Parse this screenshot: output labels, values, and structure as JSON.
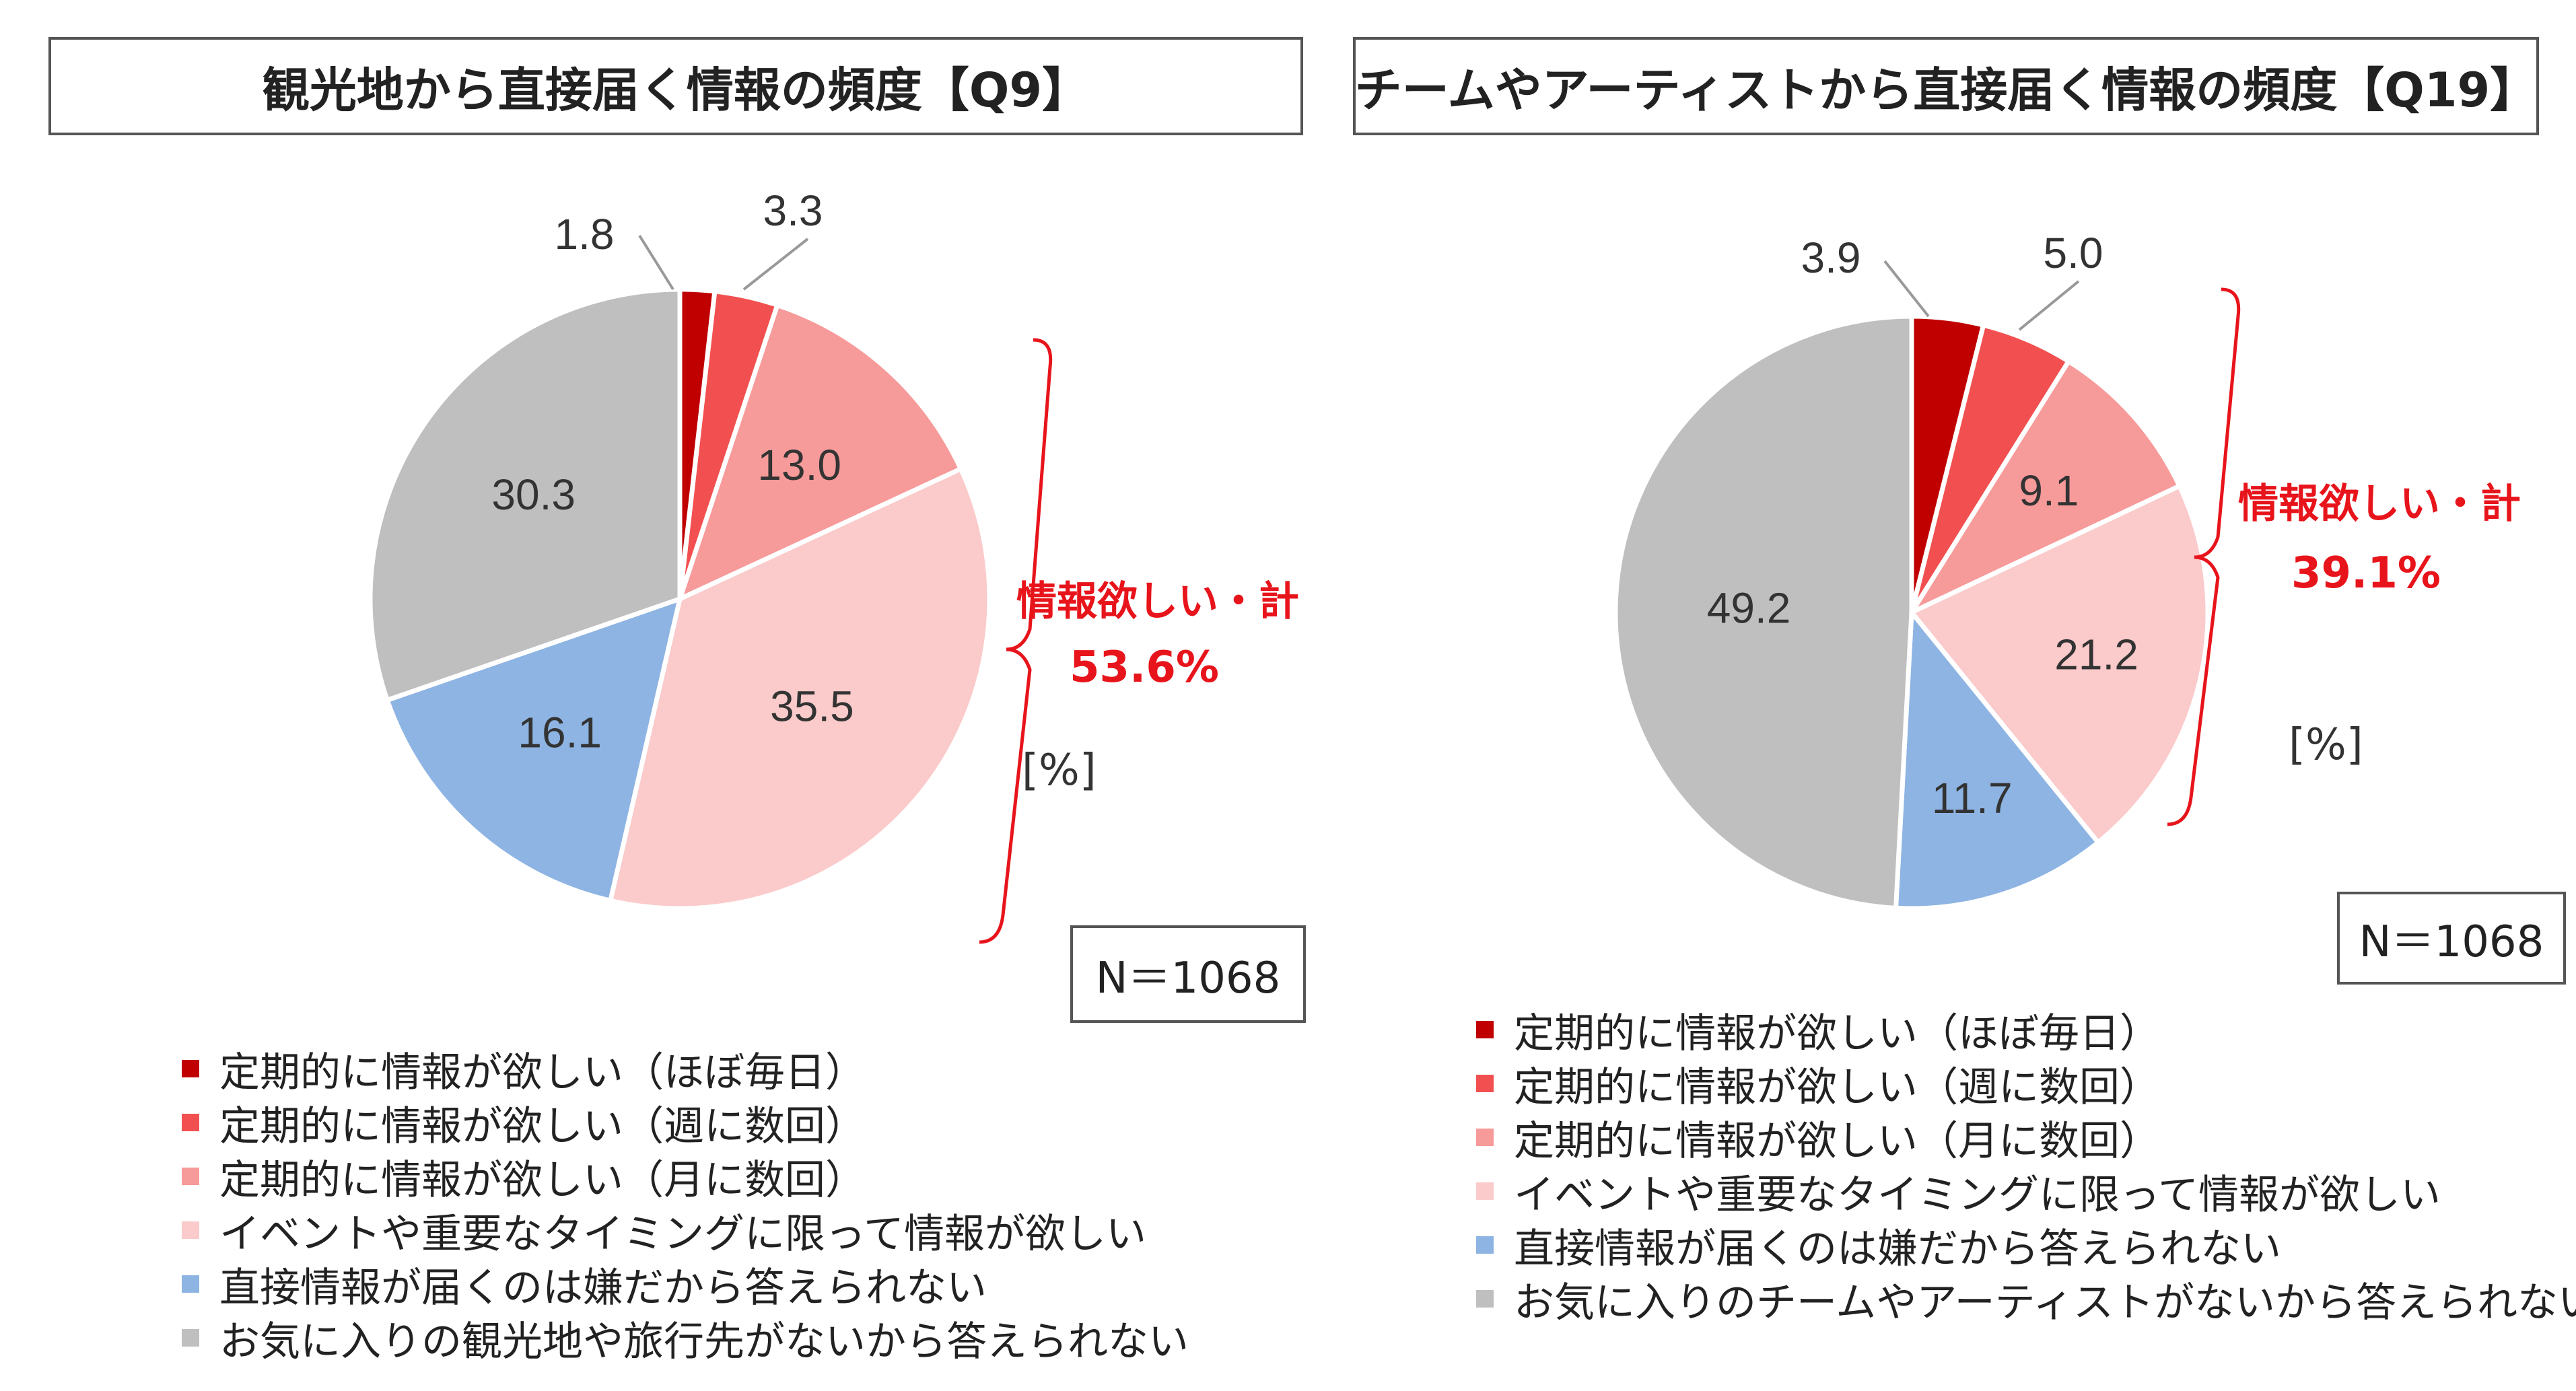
{
  "colors": {
    "s1": "#c00000",
    "s2": "#f25050",
    "s3": "#f79a9a",
    "s4": "#fbcaca",
    "s5": "#8eb4e3",
    "s6": "#bfbfbf",
    "accent": "#e8141b"
  },
  "chart_data": [
    {
      "type": "pie",
      "title": "観光地から直接届く情報の頻度【Q9】",
      "unit": "[%]",
      "n_label": "N＝1068",
      "total_label": "情報欲しい・計",
      "total_value": "53.6%",
      "legend": [
        "定期的に情報が欲しい（ほぼ毎日）",
        "定期的に情報が欲しい（週に数回）",
        "定期的に情報が欲しい（月に数回）",
        "イベントや重要なタイミングに限って情報が欲しい",
        "直接情報が届くのは嫌だから答えられない",
        "お気に入りの観光地や旅行先がないから答えられない"
      ],
      "values": [
        1.8,
        3.3,
        13.0,
        35.5,
        16.1,
        30.3
      ],
      "value_labels": [
        "1.8",
        "3.3",
        "13.0",
        "35.5",
        "16.1",
        "30.3"
      ]
    },
    {
      "type": "pie",
      "title": "チームやアーティストから直接届く情報の頻度【Q19】",
      "unit": "[%]",
      "n_label": "N＝1068",
      "total_label": "情報欲しい・計",
      "total_value": "39.1%",
      "legend": [
        "定期的に情報が欲しい（ほぼ毎日）",
        "定期的に情報が欲しい（週に数回）",
        "定期的に情報が欲しい（月に数回）",
        "イベントや重要なタイミングに限って情報が欲しい",
        "直接情報が届くのは嫌だから答えられない",
        "お気に入りのチームやアーティストがないから答えられない"
      ],
      "values": [
        3.9,
        5.0,
        9.1,
        21.2,
        11.7,
        49.2
      ],
      "value_labels": [
        "3.9",
        "5.0",
        "9.1",
        "21.2",
        "11.7",
        "49.2"
      ]
    }
  ]
}
